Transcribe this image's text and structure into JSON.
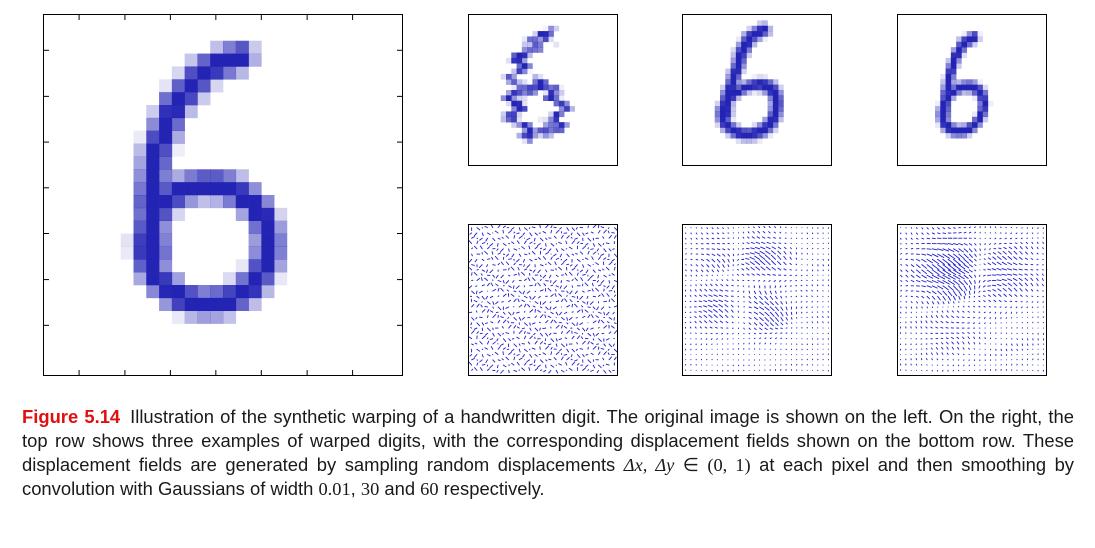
{
  "figure": {
    "label": "Figure 5.14",
    "caption_parts": {
      "p1": "Illustration of the synthetic warping of a handwritten digit. The original image is shown on the left. On the right, the top row shows three examples of warped digits, with the corresponding displacement fields shown on the bottom row. These displacement fields are generated by sampling random displacements ",
      "m1": "Δx, Δy",
      "p2": " ∈ ",
      "m2": "(0, 1)",
      "p3": " at each pixel and then smoothing by convolution with Gaussians of width ",
      "w1": "0.01",
      "p4": ", ",
      "w2": "30",
      "p5": " and ",
      "w3": "60",
      "p6": " respectively."
    }
  },
  "colors": {
    "digit": "#2323b4",
    "field": "#1c1cd0",
    "caption_label": "#e01010"
  }
}
